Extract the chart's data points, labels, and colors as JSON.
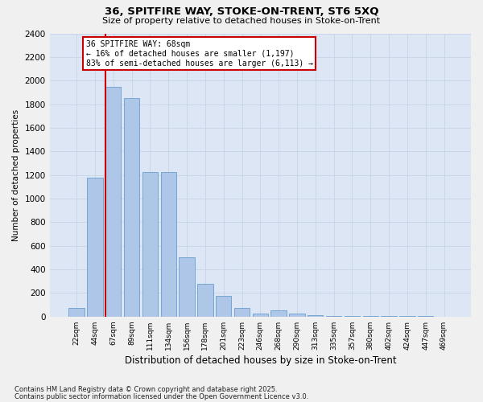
{
  "title1": "36, SPITFIRE WAY, STOKE-ON-TRENT, ST6 5XQ",
  "title2": "Size of property relative to detached houses in Stoke-on-Trent",
  "xlabel": "Distribution of detached houses by size in Stoke-on-Trent",
  "ylabel": "Number of detached properties",
  "categories": [
    "22sqm",
    "44sqm",
    "67sqm",
    "89sqm",
    "111sqm",
    "134sqm",
    "156sqm",
    "178sqm",
    "201sqm",
    "223sqm",
    "246sqm",
    "268sqm",
    "290sqm",
    "313sqm",
    "335sqm",
    "357sqm",
    "380sqm",
    "402sqm",
    "424sqm",
    "447sqm",
    "469sqm"
  ],
  "values": [
    75,
    1175,
    1950,
    1850,
    1225,
    1225,
    500,
    280,
    175,
    75,
    25,
    50,
    25,
    10,
    5,
    5,
    5,
    5,
    3,
    3,
    2
  ],
  "bar_color": "#aec6e8",
  "bar_edge_color": "#6a9fd0",
  "vline_x_index": 2,
  "vline_color": "#cc0000",
  "annotation_line1": "36 SPITFIRE WAY: 68sqm",
  "annotation_line2": "← 16% of detached houses are smaller (1,197)",
  "annotation_line3": "83% of semi-detached houses are larger (6,113) →",
  "annotation_box_color": "#ffffff",
  "annotation_box_edge_color": "#cc0000",
  "ylim": [
    0,
    2400
  ],
  "yticks": [
    0,
    200,
    400,
    600,
    800,
    1000,
    1200,
    1400,
    1600,
    1800,
    2000,
    2200,
    2400
  ],
  "grid_color": "#c8d4e8",
  "bg_color": "#dce6f5",
  "fig_bg_color": "#f0f0f0",
  "footnote1": "Contains HM Land Registry data © Crown copyright and database right 2025.",
  "footnote2": "Contains public sector information licensed under the Open Government Licence v3.0."
}
